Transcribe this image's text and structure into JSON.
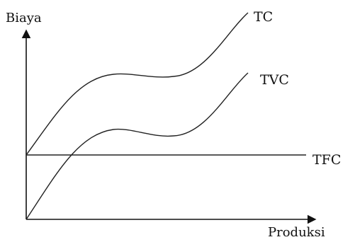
{
  "chart_data": {
    "type": "line",
    "xlabel": "Produksi",
    "ylabel": "Biaya",
    "series": [
      {
        "name": "TC",
        "shape": "cubic"
      },
      {
        "name": "TVC",
        "shape": "cubic-from-origin"
      },
      {
        "name": "TFC",
        "shape": "horizontal"
      }
    ],
    "colors": {
      "line": "#222222",
      "axis": "#111111",
      "text": "#111111"
    }
  }
}
